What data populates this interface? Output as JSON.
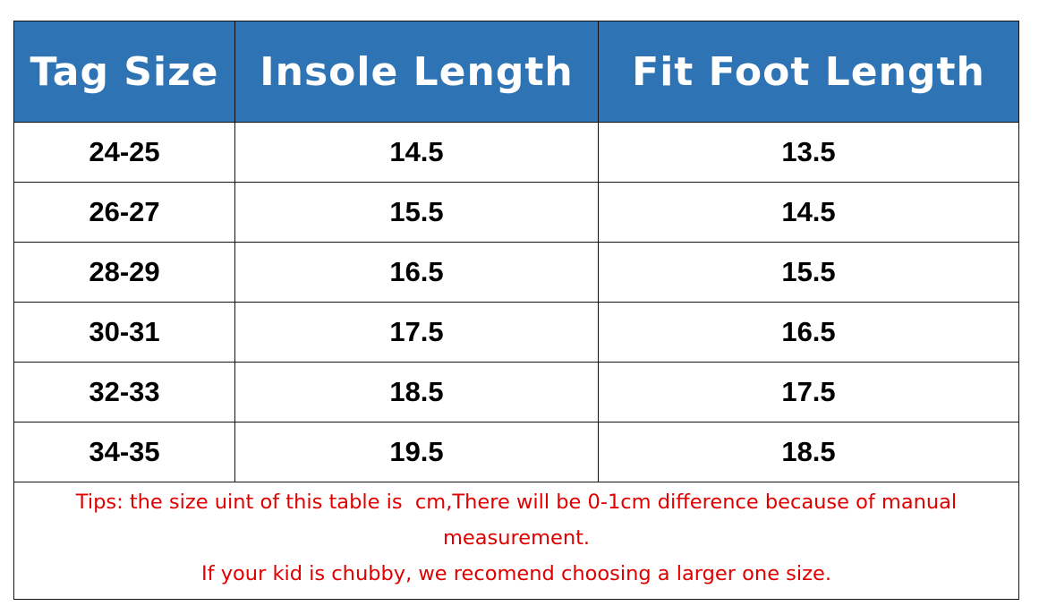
{
  "colors": {
    "header_bg": "#2e74b5",
    "header_text": "#ffffff",
    "tips_text": "#e00000"
  },
  "table": {
    "headers": [
      "Tag Size",
      "Insole Length",
      "Fit Foot Length"
    ],
    "rows": [
      [
        "24-25",
        "14.5",
        "13.5"
      ],
      [
        "26-27",
        "15.5",
        "14.5"
      ],
      [
        "28-29",
        "16.5",
        "15.5"
      ],
      [
        "30-31",
        "17.5",
        "16.5"
      ],
      [
        "32-33",
        "18.5",
        "17.5"
      ],
      [
        "34-35",
        "19.5",
        "18.5"
      ]
    ]
  },
  "tips": {
    "line1": "Tips: the size uint of this table is  cm,There will be 0-1cm difference because of manual measurement.",
    "line2": "If your kid is chubby, we recomend choosing a larger one size."
  }
}
